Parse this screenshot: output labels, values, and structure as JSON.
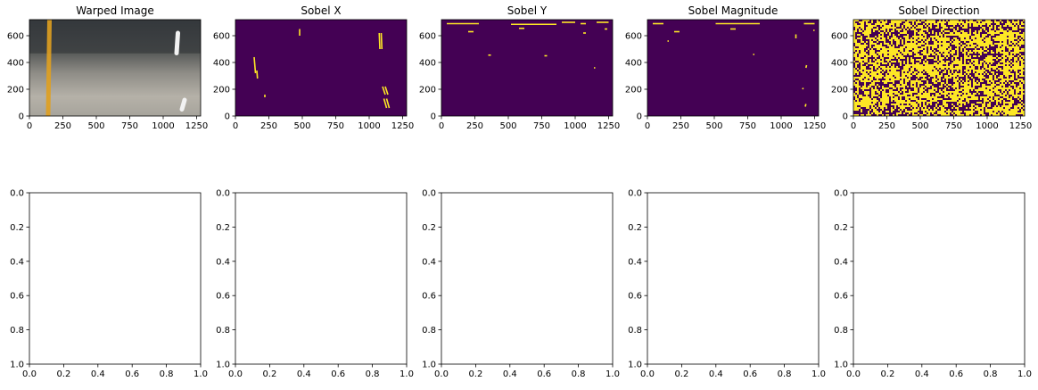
{
  "chart_data": [
    {
      "type": "heatmap",
      "title": "Warped Image",
      "content": "photo",
      "xlim": [
        0,
        1280
      ],
      "ylim": [
        720,
        0
      ],
      "xticks": [
        0,
        250,
        500,
        750,
        1000,
        1250
      ],
      "yticks": [
        0,
        200,
        400,
        600
      ],
      "lane_lines": [
        {
          "color": "#e0a020",
          "points": [
            [
              140,
              0
            ],
            [
              150,
              720
            ]
          ]
        },
        {
          "color": "#f2f2f2",
          "segments": [
            [
              [
                1140,
                50
              ],
              [
                1160,
                120
              ]
            ],
            [
              [
                1100,
                470
              ],
              [
                1110,
                620
              ]
            ]
          ]
        }
      ]
    },
    {
      "type": "heatmap",
      "title": "Sobel X",
      "content": "binary",
      "colors": {
        "zero": "#440154",
        "one": "#fde725"
      },
      "xlim": [
        0,
        1280
      ],
      "ylim": [
        720,
        0
      ],
      "xticks": [
        0,
        250,
        500,
        750,
        1000,
        1250
      ],
      "yticks": [
        0,
        200,
        400,
        600
      ],
      "hot_segments": [
        [
          [
            1130,
            60
          ],
          [
            1110,
            130
          ]
        ],
        [
          [
            1150,
            60
          ],
          [
            1130,
            130
          ]
        ],
        [
          [
            1120,
            160
          ],
          [
            1100,
            220
          ]
        ],
        [
          [
            1140,
            160
          ],
          [
            1120,
            220
          ]
        ],
        [
          [
            1080,
            500
          ],
          [
            1075,
            620
          ]
        ],
        [
          [
            1095,
            500
          ],
          [
            1090,
            620
          ]
        ],
        [
          [
            150,
            320
          ],
          [
            140,
            440
          ]
        ],
        [
          [
            165,
            280
          ],
          [
            160,
            340
          ]
        ],
        [
          [
            480,
            600
          ],
          [
            480,
            650
          ]
        ],
        [
          [
            220,
            140
          ],
          [
            220,
            160
          ]
        ]
      ]
    },
    {
      "type": "heatmap",
      "title": "Sobel Y",
      "content": "binary",
      "colors": {
        "zero": "#440154",
        "one": "#fde725"
      },
      "xlim": [
        0,
        1280
      ],
      "ylim": [
        720,
        0
      ],
      "xticks": [
        0,
        250,
        500,
        750,
        1000,
        1250
      ],
      "yticks": [
        0,
        200,
        400,
        600
      ],
      "hot_segments": [
        [
          [
            40,
            690
          ],
          [
            280,
            690
          ]
        ],
        [
          [
            520,
            685
          ],
          [
            860,
            685
          ]
        ],
        [
          [
            200,
            630
          ],
          [
            240,
            630
          ]
        ],
        [
          [
            580,
            655
          ],
          [
            620,
            655
          ]
        ],
        [
          [
            900,
            700
          ],
          [
            1000,
            700
          ]
        ],
        [
          [
            1040,
            690
          ],
          [
            1080,
            690
          ]
        ],
        [
          [
            1160,
            700
          ],
          [
            1250,
            700
          ]
        ],
        [
          [
            350,
            455
          ],
          [
            370,
            455
          ]
        ],
        [
          [
            770,
            450
          ],
          [
            790,
            450
          ]
        ],
        [
          [
            1140,
            360
          ],
          [
            1150,
            360
          ]
        ],
        [
          [
            1060,
            620
          ],
          [
            1080,
            620
          ]
        ],
        [
          [
            1220,
            650
          ],
          [
            1240,
            650
          ]
        ]
      ]
    },
    {
      "type": "heatmap",
      "title": "Sobel Magnitude",
      "content": "binary",
      "colors": {
        "zero": "#440154",
        "one": "#fde725"
      },
      "xlim": [
        0,
        1280
      ],
      "ylim": [
        720,
        0
      ],
      "xticks": [
        0,
        250,
        500,
        750,
        1000,
        1250
      ],
      "yticks": [
        0,
        200,
        400,
        600
      ],
      "hot_segments": [
        [
          [
            40,
            690
          ],
          [
            120,
            690
          ]
        ],
        [
          [
            510,
            690
          ],
          [
            840,
            690
          ]
        ],
        [
          [
            200,
            630
          ],
          [
            240,
            630
          ]
        ],
        [
          [
            620,
            650
          ],
          [
            660,
            650
          ]
        ],
        [
          [
            1170,
            690
          ],
          [
            1250,
            690
          ]
        ],
        [
          [
            1180,
            70
          ],
          [
            1185,
            90
          ]
        ],
        [
          [
            1185,
            360
          ],
          [
            1190,
            380
          ]
        ],
        [
          [
            1110,
            580
          ],
          [
            1110,
            610
          ]
        ],
        [
          [
            150,
            560
          ],
          [
            160,
            560
          ]
        ],
        [
          [
            790,
            460
          ],
          [
            800,
            460
          ]
        ],
        [
          [
            1240,
            640
          ],
          [
            1250,
            640
          ]
        ],
        [
          [
            1160,
            200
          ],
          [
            1165,
            210
          ]
        ]
      ]
    },
    {
      "type": "heatmap",
      "title": "Sobel Direction",
      "content": "noise",
      "colors": {
        "zero": "#440154",
        "one": "#fde725"
      },
      "xlim": [
        0,
        1280
      ],
      "ylim": [
        720,
        0
      ],
      "xticks": [
        0,
        250,
        500,
        750,
        1000,
        1250
      ],
      "yticks": [
        0,
        200,
        400,
        600
      ]
    },
    {
      "type": "line",
      "title": "",
      "empty": true,
      "xlim": [
        0,
        1
      ],
      "ylim": [
        0,
        1
      ],
      "xticks": [
        "0.0",
        "0.2",
        "0.4",
        "0.6",
        "0.8",
        "1.0"
      ],
      "yticks": [
        "0.0",
        "0.2",
        "0.4",
        "0.6",
        "0.8",
        "1.0"
      ]
    },
    {
      "type": "line",
      "title": "",
      "empty": true,
      "xlim": [
        0,
        1
      ],
      "ylim": [
        0,
        1
      ],
      "xticks": [
        "0.0",
        "0.2",
        "0.4",
        "0.6",
        "0.8",
        "1.0"
      ],
      "yticks": [
        "0.0",
        "0.2",
        "0.4",
        "0.6",
        "0.8",
        "1.0"
      ]
    },
    {
      "type": "line",
      "title": "",
      "empty": true,
      "xlim": [
        0,
        1
      ],
      "ylim": [
        0,
        1
      ],
      "xticks": [
        "0.0",
        "0.2",
        "0.4",
        "0.6",
        "0.8",
        "1.0"
      ],
      "yticks": [
        "0.0",
        "0.2",
        "0.4",
        "0.6",
        "0.8",
        "1.0"
      ]
    },
    {
      "type": "line",
      "title": "",
      "empty": true,
      "xlim": [
        0,
        1
      ],
      "ylim": [
        0,
        1
      ],
      "xticks": [
        "0.0",
        "0.2",
        "0.4",
        "0.6",
        "0.8",
        "1.0"
      ],
      "yticks": [
        "0.0",
        "0.2",
        "0.4",
        "0.6",
        "0.8",
        "1.0"
      ]
    },
    {
      "type": "line",
      "title": "",
      "empty": true,
      "xlim": [
        0,
        1
      ],
      "ylim": [
        0,
        1
      ],
      "xticks": [
        "0.0",
        "0.2",
        "0.4",
        "0.6",
        "0.8",
        "1.0"
      ],
      "yticks": [
        "0.0",
        "0.2",
        "0.4",
        "0.6",
        "0.8",
        "1.0"
      ]
    }
  ]
}
